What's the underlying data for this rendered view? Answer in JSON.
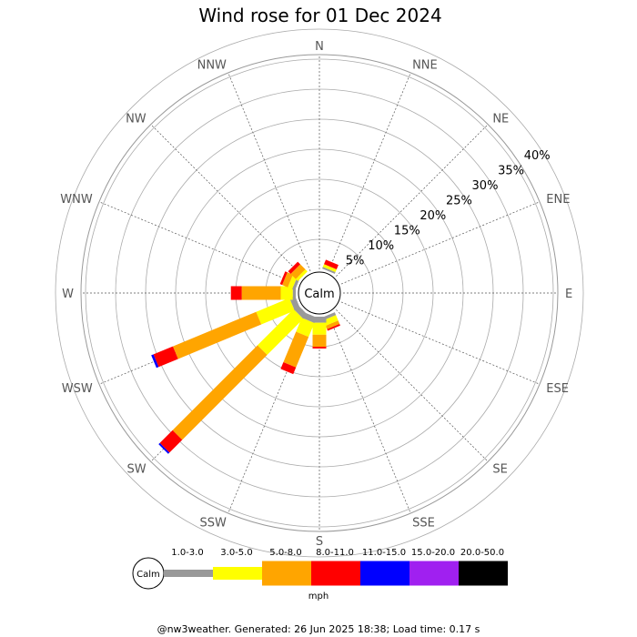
{
  "chart_data": {
    "type": "windrose",
    "title": "Wind rose for 01 Dec 2024",
    "directions": [
      "N",
      "NNE",
      "NE",
      "ENE",
      "E",
      "ESE",
      "SE",
      "SSE",
      "S",
      "SSW",
      "SW",
      "WSW",
      "W",
      "WNW",
      "NW",
      "NNW"
    ],
    "rings": [
      5,
      10,
      15,
      20,
      25,
      30,
      35,
      40
    ],
    "ring_labels": [
      "5%",
      "10%",
      "15%",
      "20%",
      "25%",
      "30%",
      "35%",
      "40%"
    ],
    "calm_label": "Calm",
    "unit": "mph",
    "bins": [
      {
        "label": "1.0-3.0",
        "color": "#999999"
      },
      {
        "label": "3.0-5.0",
        "color": "#ffff00"
      },
      {
        "label": "5.0-8.0",
        "color": "#ffa500"
      },
      {
        "label": "8.0-11.0",
        "color": "#ff0000"
      },
      {
        "label": "11.0-15.0",
        "color": "#0000ff"
      },
      {
        "label": "15.0-20.0",
        "color": "#a020f0"
      },
      {
        "label": "20.0-50.0",
        "color": "#000000"
      }
    ],
    "frequencies_percent": {
      "N": [
        0,
        0,
        0,
        0,
        0,
        0,
        0
      ],
      "NNE": [
        0.3,
        0.5,
        0,
        0.8,
        0,
        0,
        0
      ],
      "NE": [
        0,
        0,
        0,
        0,
        0,
        0,
        0
      ],
      "ENE": [
        0,
        0,
        0,
        0,
        0,
        0,
        0
      ],
      "E": [
        0,
        0,
        0,
        0,
        0,
        0,
        0
      ],
      "ESE": [
        0,
        0,
        0,
        0,
        0,
        0,
        0
      ],
      "SE": [
        0,
        0,
        0,
        0,
        0,
        0,
        0
      ],
      "SSE": [
        0.5,
        1.0,
        0.6,
        0.3,
        0,
        0,
        0
      ],
      "S": [
        1.0,
        2.0,
        2.0,
        0.3,
        0,
        0,
        0
      ],
      "SSW": [
        1.0,
        2.5,
        5.5,
        1.2,
        0,
        0,
        0
      ],
      "SW": [
        1.0,
        8.5,
        20.0,
        3.0,
        0.3,
        0,
        0
      ],
      "WSW": [
        1.0,
        6.0,
        15.0,
        3.5,
        0.4,
        0,
        0
      ],
      "W": [
        0.5,
        2.0,
        6.5,
        1.8,
        0,
        0,
        0
      ],
      "WNW": [
        0.5,
        0.8,
        1.0,
        0.4,
        0,
        0,
        0
      ],
      "NW": [
        0,
        0.5,
        1.2,
        0.6,
        0,
        0,
        0
      ],
      "NNW": [
        0,
        0,
        0,
        0,
        0,
        0,
        0
      ]
    }
  },
  "footer": "@nw3weather. Generated: 26 Jun 2025 18:38; Load time: 0.17 s"
}
